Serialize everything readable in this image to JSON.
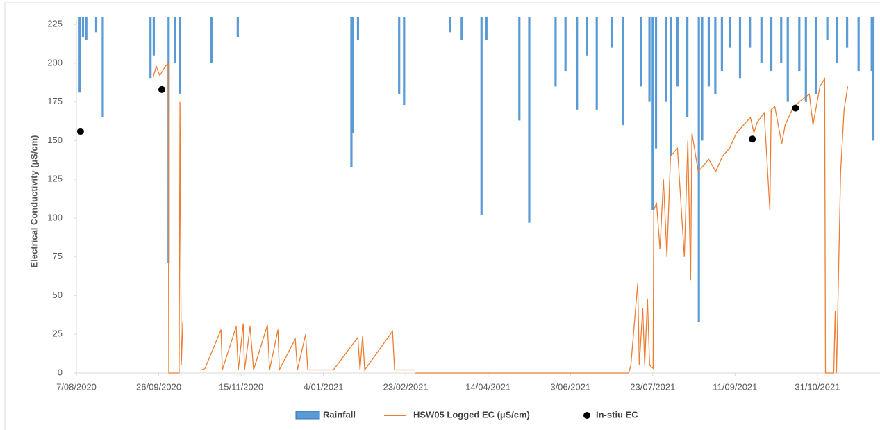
{
  "chart_data": {
    "type": "combo",
    "y_axis_label": "Electrical Conductivity (µS/cm)",
    "xlim": [
      0,
      488
    ],
    "xticks": [
      {
        "value": 0,
        "label": "7/08/2020"
      },
      {
        "value": 50,
        "label": "26/09/2020"
      },
      {
        "value": 100,
        "label": "15/11/2020"
      },
      {
        "value": 150,
        "label": "4/01/2021"
      },
      {
        "value": 200,
        "label": "23/02/2021"
      },
      {
        "value": 250,
        "label": "14/04/2021"
      },
      {
        "value": 300,
        "label": "3/06/2021"
      },
      {
        "value": 350,
        "label": "23/07/2021"
      },
      {
        "value": 400,
        "label": "11/09/2021"
      },
      {
        "value": 450,
        "label": "31/10/2021"
      }
    ],
    "ylim": [
      0,
      230
    ],
    "yticks": [
      0,
      25,
      50,
      75,
      100,
      125,
      150,
      175,
      200,
      225
    ],
    "y2lim": [
      0,
      230
    ],
    "y2_inverted": true,
    "series": [
      {
        "name": "Rainfall",
        "type": "bar",
        "axis": "y2",
        "color": "#5b9bd5",
        "x": [
          2,
          4,
          6,
          12,
          16,
          45,
          47,
          56,
          60,
          63,
          82,
          98,
          167,
          168,
          171,
          196,
          199,
          227,
          234,
          246,
          249,
          269,
          275,
          291,
          297,
          304,
          310,
          316,
          325,
          332,
          343,
          348,
          350,
          352,
          358,
          361,
          365,
          371,
          378,
          380,
          384,
          388,
          392,
          397,
          403,
          409,
          416,
          422,
          428,
          432,
          439,
          443,
          449,
          456,
          462,
          468,
          475,
          483,
          484
        ],
        "values": [
          49,
          13,
          15,
          10,
          65,
          40,
          25,
          159,
          30,
          50,
          30,
          13,
          97,
          75,
          15,
          50,
          57,
          10,
          15,
          128,
          15,
          67,
          133,
          45,
          35,
          60,
          25,
          60,
          20,
          70,
          45,
          55,
          125,
          85,
          55,
          90,
          45,
          65,
          197,
          80,
          45,
          50,
          35,
          20,
          40,
          20,
          30,
          35,
          30,
          55,
          35,
          55,
          50,
          15,
          30,
          20,
          35,
          35,
          80
        ]
      },
      {
        "name": "HSW05 Logged EC (µS/cm)",
        "type": "line",
        "color": "#ed7d31",
        "x": [
          46.4,
          48.5,
          50.6,
          54,
          55.7,
          56.1,
          62.4,
          62.9,
          63.7,
          64.6,
          null,
          75.9,
          78.1,
          87.8,
          88.6,
          97,
          98.3,
          101.3,
          102.1,
          105.5,
          107.6,
          116,
          117.3,
          122.4,
          123.2,
          132.9,
          134.2,
          139.2,
          140.5,
          156.1,
          170.9,
          172.2,
          173.8,
          175.1,
          192,
          193.2,
          205.5,
          null,
          205.9,
          335.4,
          336.7,
          340.9,
          341.8,
          343.9,
          345.1,
          346.8,
          348.1,
          350.2,
          350.6,
          352.3,
          354.4,
          356.5,
          358.6,
          360.8,
          365,
          369.2,
          371.3,
          373,
          373.8,
          377.6,
          384,
          388.2,
          392.4,
          396.6,
          400.8,
          405.1,
          409.3,
          411.4,
          413.5,
          417.7,
          421.1,
          421.9,
          424.1,
          428.3,
          430.4,
          434.6,
          438.8,
          445.1,
          447.3,
          451.5,
          454.4,
          454.9,
          459.9,
          460.8,
          461.6,
          464.1,
          466.2,
          468.4
        ],
        "values": [
          190,
          198,
          192,
          198,
          200,
          0,
          0,
          175,
          5,
          33,
          null,
          2,
          3,
          28,
          2,
          30,
          2,
          32,
          2,
          30,
          2,
          31,
          2,
          28,
          2,
          22,
          2,
          25,
          2,
          2,
          23,
          2,
          24,
          2,
          27,
          2,
          2,
          null,
          0,
          0,
          5,
          58,
          5,
          42,
          5,
          48,
          5,
          3,
          105,
          110,
          80,
          125,
          75,
          140,
          145,
          75,
          150,
          60,
          155,
          130,
          138,
          130,
          140,
          145,
          155,
          160,
          165,
          155,
          162,
          168,
          105,
          170,
          172,
          148,
          160,
          170,
          175,
          180,
          160,
          185,
          190,
          0,
          0,
          40,
          0,
          130,
          170,
          185
        ]
      },
      {
        "name": "In-stiu EC",
        "type": "scatter",
        "color": "#000000",
        "x": [
          2.5,
          51.9,
          410.5,
          436.7
        ],
        "values": [
          156,
          183,
          151,
          171
        ]
      }
    ]
  }
}
